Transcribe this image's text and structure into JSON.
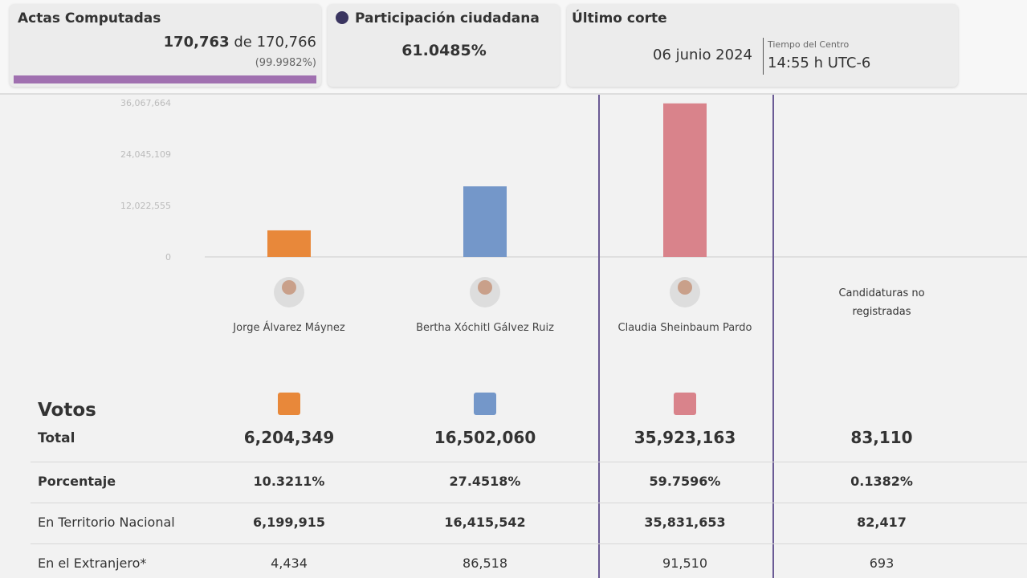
{
  "header": {
    "actas": {
      "title": "Actas Computadas",
      "count": "170,763",
      "of": "de",
      "total": "170,766",
      "percent": 99.9982,
      "percent_label": "(99.9982%)"
    },
    "participacion": {
      "title": "Participación ciudadana",
      "value": "61.0485%"
    },
    "corte": {
      "title": "Último corte",
      "date": "06 junio 2024",
      "tz_label": "Tiempo del Centro",
      "time": "14:55 h UTC-6"
    }
  },
  "chart_data": {
    "type": "bar",
    "categories": [
      "Jorge Álvarez Máynez",
      "Bertha Xóchitl Gálvez Ruiz",
      "Claudia Sheinbaum Pardo"
    ],
    "values": [
      6204349,
      16502060,
      35923163
    ],
    "value_labels": [
      "6,204,349",
      "16,502,060",
      "35,923,163"
    ],
    "colors": [
      "#e8883a",
      "#7497c9",
      "#d9838b"
    ],
    "ylim": [
      0,
      36067664
    ],
    "yticks": [
      0,
      {
        "value": 12022555,
        "label": "12,022,555"
      },
      {
        "value": 24045109,
        "label": "24,045,109"
      },
      {
        "value": 36067664,
        "label": "36,067,664"
      }
    ]
  },
  "other_candidates": "Candidaturas no registradas",
  "table": {
    "title": "Votos",
    "total_label": "Total",
    "total_other": "83,110",
    "rows": [
      {
        "label": "Porcentaje",
        "cells": [
          "10.3211%",
          "27.4518%",
          "59.7596%",
          "0.1382%"
        ]
      },
      {
        "label": "En Territorio Nacional",
        "cells": [
          "6,199,915",
          "16,415,542",
          "35,831,653",
          "82,417"
        ]
      },
      {
        "label": "En el Extranjero*",
        "cells": [
          "4,434",
          "86,518",
          "91,510",
          "693"
        ]
      }
    ]
  }
}
